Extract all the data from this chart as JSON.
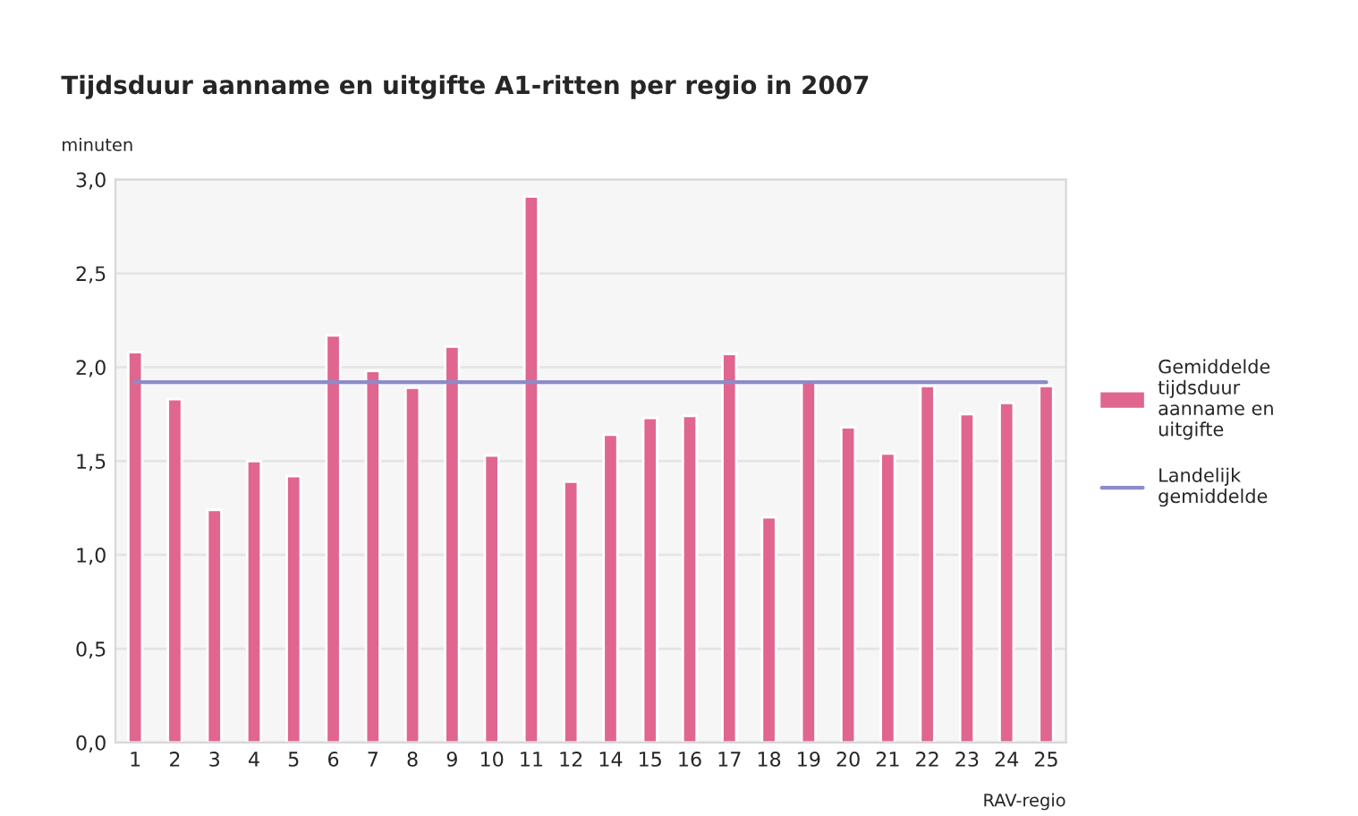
{
  "chart_data": {
    "type": "bar",
    "title": "Tijdsduur aanname en uitgifte A1-ritten per regio in 2007",
    "ylabel": "minuten",
    "xlabel": "RAV-regio",
    "categories": [
      "1",
      "2",
      "3",
      "4",
      "5",
      "6",
      "7",
      "8",
      "9",
      "10",
      "11",
      "12",
      "14",
      "15",
      "16",
      "17",
      "18",
      "19",
      "20",
      "21",
      "22",
      "23",
      "24",
      "25"
    ],
    "series": [
      {
        "name": "Gemiddelde tijdsduur aanname en uitgifte",
        "color": "#e0668f",
        "values": [
          2.08,
          1.83,
          1.24,
          1.5,
          1.42,
          2.17,
          1.98,
          1.89,
          2.11,
          1.53,
          2.91,
          1.39,
          1.64,
          1.73,
          1.74,
          2.07,
          1.2,
          1.93,
          1.68,
          1.54,
          1.9,
          1.75,
          1.81,
          1.9
        ]
      },
      {
        "name": "Landelijk gemiddelde",
        "type": "line",
        "color": "#8c8cc8",
        "values": [
          1.92,
          1.92,
          1.92,
          1.92,
          1.92,
          1.92,
          1.92,
          1.92,
          1.92,
          1.92,
          1.92,
          1.92,
          1.92,
          1.92,
          1.92,
          1.92,
          1.92,
          1.92,
          1.92,
          1.92,
          1.92,
          1.92,
          1.92,
          1.92
        ]
      }
    ],
    "ylim": [
      0,
      3.0
    ],
    "yticks": [
      {
        "value": 0,
        "label": "0,0"
      },
      {
        "value": 0.5,
        "label": "0,5"
      },
      {
        "value": 1.0,
        "label": "1,0"
      },
      {
        "value": 1.5,
        "label": "1,5"
      },
      {
        "value": 2.0,
        "label": "2,0"
      },
      {
        "value": 2.5,
        "label": "2,5"
      },
      {
        "value": 3.0,
        "label": "3,0"
      }
    ],
    "grid": "y",
    "legend": "right"
  }
}
